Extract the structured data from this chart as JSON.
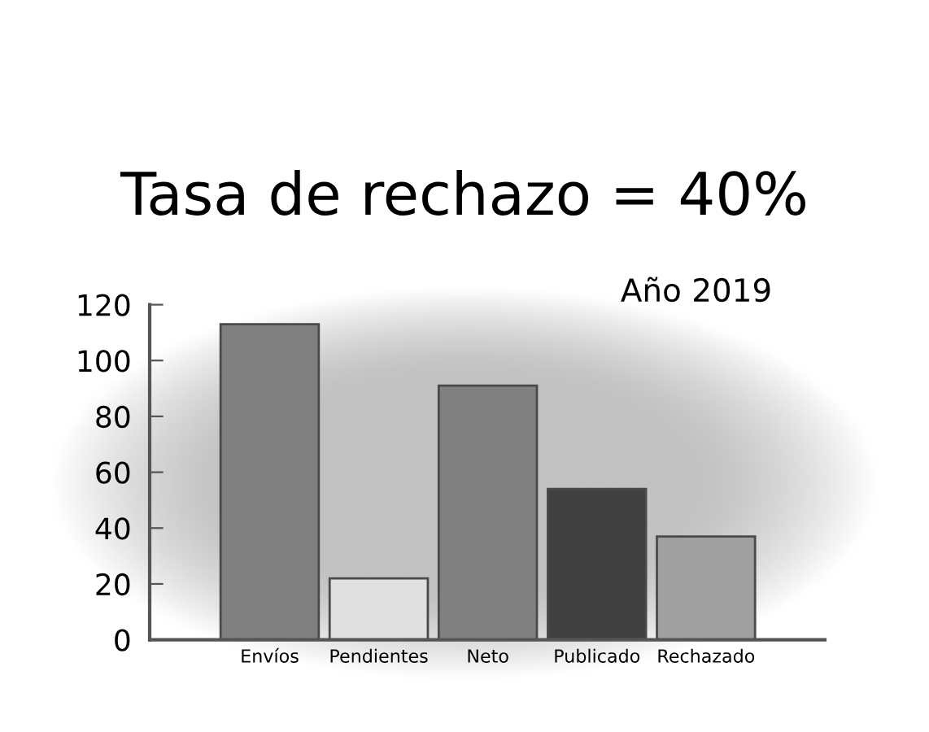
{
  "chart_data": {
    "type": "bar",
    "title": "Tasa de rechazo = 40%",
    "annotations": [
      "Año 2019"
    ],
    "categories": [
      "Envíos",
      "Pendientes",
      "Neto",
      "Publicado",
      "Rechazado"
    ],
    "values": [
      113,
      22,
      91,
      54,
      37
    ],
    "colors": [
      "#808080",
      "#e0e0e0",
      "#808080",
      "#404040",
      "#a0a0a0"
    ],
    "ylim": [
      0,
      120
    ],
    "yticks": [
      0,
      20,
      40,
      60,
      80,
      100,
      120
    ]
  }
}
